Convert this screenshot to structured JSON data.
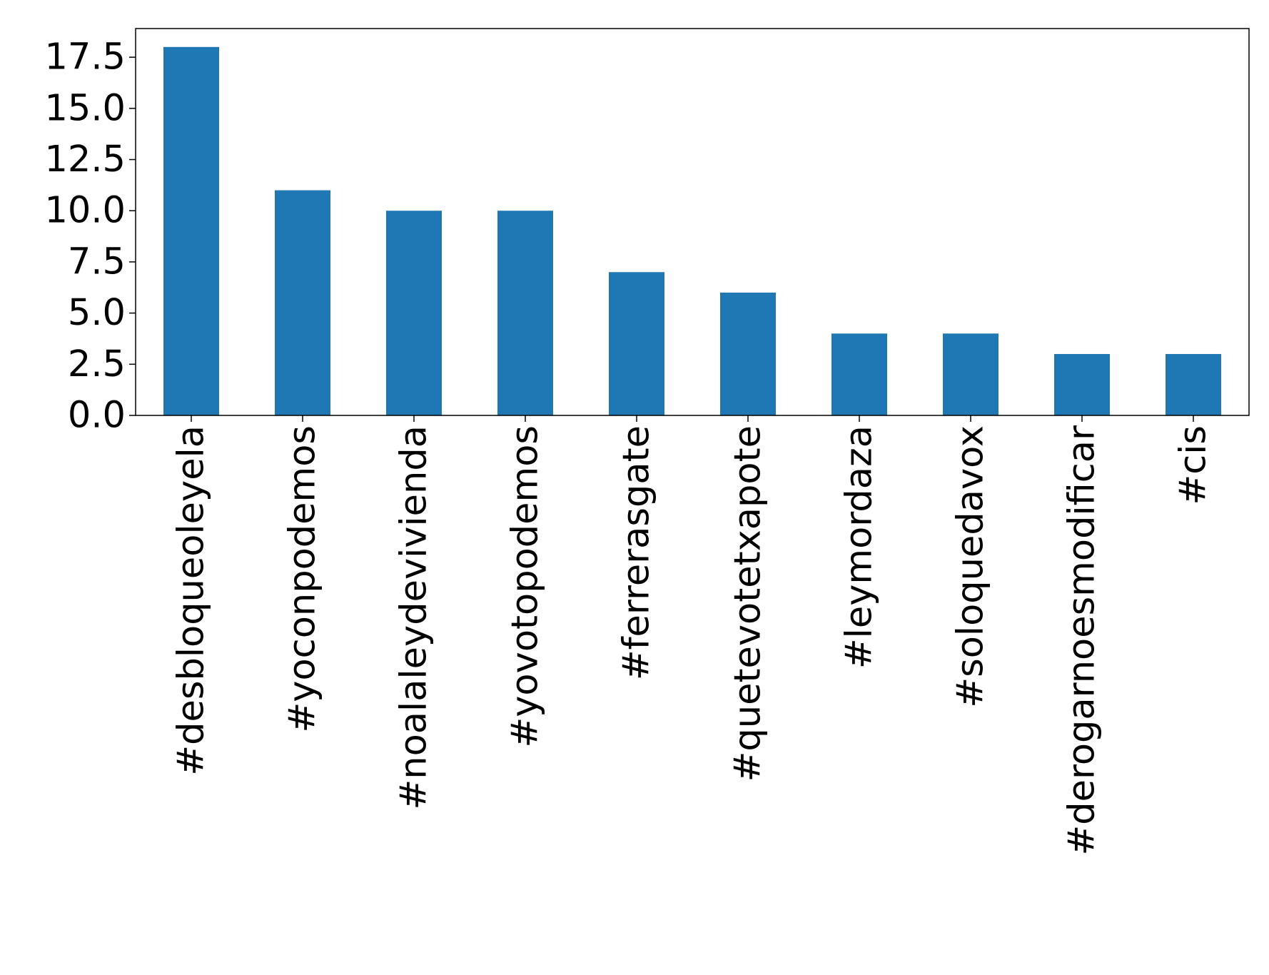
{
  "chart_data": {
    "type": "bar",
    "title": "",
    "xlabel": "",
    "ylabel": "",
    "categories": [
      "#desbloqueoleyela",
      "#yoconpodemos",
      "#noalaleydevivienda",
      "#yovotopodemos",
      "#ferrerasgate",
      "#quetevotetxapote",
      "#leymordaza",
      "#soloquedavox",
      "#derogarnoesmodificar",
      "#cis"
    ],
    "values": [
      18,
      11,
      10,
      10,
      7,
      6,
      4,
      4,
      3,
      3
    ],
    "ylim": [
      0,
      18.9
    ],
    "yticks": [
      0.0,
      2.5,
      5.0,
      7.5,
      10.0,
      12.5,
      15.0,
      17.5
    ],
    "ytick_labels": [
      "0.0",
      "2.5",
      "5.0",
      "7.5",
      "10.0",
      "12.5",
      "15.0",
      "17.5"
    ],
    "bar_color": "#1f77b4",
    "grid": false,
    "legend": false
  }
}
